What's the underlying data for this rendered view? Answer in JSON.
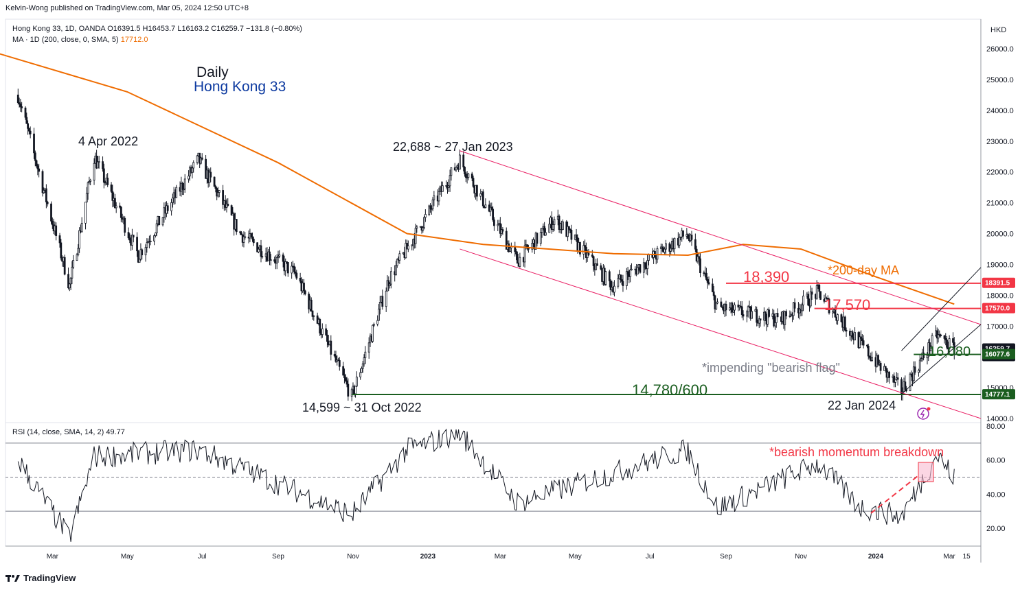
{
  "header": {
    "publisher": "Kelvin-Wong published on TradingView.com, Mar 05, 2024 12:50 UTC+8",
    "ohlc": "Hong Kong 33, 1D, OANDA  O16391.5  H16453.7  L16163.2  C16259.7  −131.8 (−0.80%)",
    "ma_label": "MA · 1D (200, close, 0, SMA, 5)",
    "ma_value": "17712.0",
    "currency": "HKD"
  },
  "rsi_legend": {
    "label": "RSI (14, close, SMA, 14, 2)",
    "value": "49.77"
  },
  "footer": {
    "brand": "TradingView"
  },
  "colors": {
    "up": "#131722",
    "ma": "#ef6c00",
    "channel": "#e91e63",
    "support": "#1b5e20",
    "resistance": "#f23645",
    "annotation_red": "#f23645",
    "annotation_green": "#1b5e20",
    "title_blue": "#0d3aa0"
  },
  "annotations": {
    "daily": "Daily",
    "instrument": "Hong Kong 33",
    "apr2022": "4 Apr 2022",
    "jan2023": "22,688 ~ 27 Jan 2023",
    "oct2022": "14,599 ~ 31 Oct 2022",
    "jan2024": "22 Jan 2024",
    "ma200": "*200-day MA",
    "r1": "18,390",
    "r2": "17,570",
    "s1": "16,080",
    "s2": "14,780/600",
    "flag": "*impending \"bearish flag\"",
    "momentum": "*bearish momentum breakdown"
  },
  "chart_data": [
    {
      "type": "candlestick",
      "title": "Hong Kong 33, 1D, OANDA",
      "ylim": [
        13800,
        26600
      ],
      "y_ticks": [
        "26000.0",
        "25000.0",
        "24000.0",
        "23000.0",
        "22000.0",
        "21000.0",
        "20000.0",
        "19000.0",
        "18000.0",
        "17000.0",
        "15000.0",
        "14000.0"
      ],
      "x_ticks": [
        "Mar",
        "May",
        "Jul",
        "Sep",
        "Nov",
        "2023",
        "Mar",
        "May",
        "Jul",
        "Sep",
        "Nov",
        "2024",
        "Mar",
        "15"
      ],
      "price_labels": [
        {
          "text": "18391.5",
          "value": 18391.5,
          "color": "#f23645"
        },
        {
          "text": "17570.0",
          "value": 17570.0,
          "color": "#f23645"
        },
        {
          "text": "16259.7",
          "sub": "17:09:40",
          "value": 16259.7,
          "color": "#131722"
        },
        {
          "text": "16077.6",
          "value": 16077.6,
          "color": "#1b5e20"
        },
        {
          "text": "14777.1",
          "value": 14777.1,
          "color": "#1b5e20"
        }
      ],
      "key_points": [
        {
          "date": "2022-02-01",
          "close": 24500
        },
        {
          "date": "2022-03-15",
          "close": 18300
        },
        {
          "date": "2022-04-04",
          "close": 22500
        },
        {
          "date": "2022-05-10",
          "close": 19300
        },
        {
          "date": "2022-06-28",
          "close": 22400
        },
        {
          "date": "2022-08-01",
          "close": 20000
        },
        {
          "date": "2022-09-15",
          "close": 18700
        },
        {
          "date": "2022-10-31",
          "close": 14700
        },
        {
          "date": "2022-11-30",
          "close": 18500
        },
        {
          "date": "2023-01-27",
          "close": 22400
        },
        {
          "date": "2023-03-15",
          "close": 19100
        },
        {
          "date": "2023-04-15",
          "close": 20500
        },
        {
          "date": "2023-05-31",
          "close": 18300
        },
        {
          "date": "2023-07-31",
          "close": 20000
        },
        {
          "date": "2023-08-25",
          "close": 17600
        },
        {
          "date": "2023-10-15",
          "close": 17200
        },
        {
          "date": "2023-11-15",
          "close": 18100
        },
        {
          "date": "2023-12-20",
          "close": 16400
        },
        {
          "date": "2024-01-22",
          "close": 14900
        },
        {
          "date": "2024-02-20",
          "close": 16700
        },
        {
          "date": "2024-03-05",
          "close": 16259.7
        }
      ],
      "ma200": [
        {
          "date": "2022-01-03",
          "value": 26000
        },
        {
          "date": "2022-05-01",
          "value": 24600
        },
        {
          "date": "2022-09-01",
          "value": 22300
        },
        {
          "date": "2022-12-15",
          "value": 20000
        },
        {
          "date": "2023-02-15",
          "value": 19650
        },
        {
          "date": "2023-06-01",
          "value": 19350
        },
        {
          "date": "2023-08-01",
          "value": 19300
        },
        {
          "date": "2023-09-15",
          "value": 19650
        },
        {
          "date": "2023-11-01",
          "value": 19500
        },
        {
          "date": "2024-01-01",
          "value": 18600
        },
        {
          "date": "2024-03-05",
          "value": 17712
        }
      ],
      "levels": [
        {
          "name": "18,390",
          "value": 18390
        },
        {
          "name": "17,570",
          "value": 17570
        },
        {
          "name": "16,080",
          "value": 16080
        },
        {
          "name": "14,780/600",
          "value": 14780
        }
      ]
    },
    {
      "type": "line",
      "title": "RSI (14, close, SMA, 14, 2)",
      "ylim": [
        10,
        80
      ],
      "y_ticks": [
        "80.00",
        "60.00",
        "40.00",
        "20.00"
      ],
      "bands": [
        70,
        50,
        30
      ],
      "key_points": [
        {
          "date": "2022-02-01",
          "value": 60
        },
        {
          "date": "2022-03-15",
          "value": 14
        },
        {
          "date": "2022-04-04",
          "value": 62
        },
        {
          "date": "2022-06-28",
          "value": 66
        },
        {
          "date": "2022-10-31",
          "value": 28
        },
        {
          "date": "2022-12-15",
          "value": 66
        },
        {
          "date": "2023-01-27",
          "value": 76
        },
        {
          "date": "2023-03-15",
          "value": 35
        },
        {
          "date": "2023-07-31",
          "value": 66
        },
        {
          "date": "2023-08-25",
          "value": 32
        },
        {
          "date": "2023-11-15",
          "value": 58
        },
        {
          "date": "2023-12-20",
          "value": 32
        },
        {
          "date": "2024-01-22",
          "value": 27
        },
        {
          "date": "2024-02-20",
          "value": 63
        },
        {
          "date": "2024-03-05",
          "value": 49.77
        }
      ]
    }
  ]
}
